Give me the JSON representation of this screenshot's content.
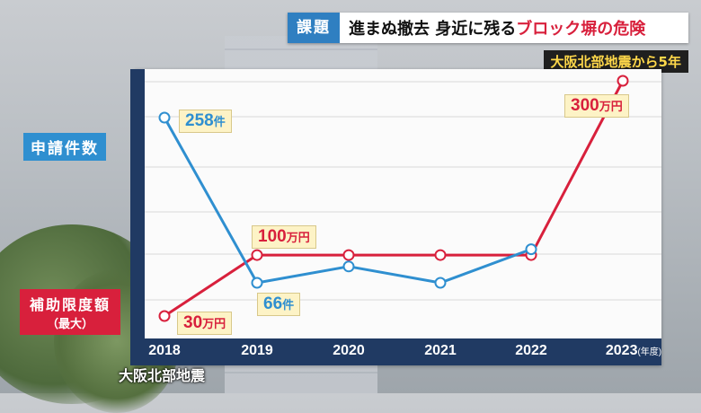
{
  "banner": {
    "badge": "課題",
    "text_black": "進まぬ撤去 身近に残る",
    "text_red": "ブロック塀の危険"
  },
  "subtitle": "大阪北部地震から5年",
  "colors": {
    "blue_series": "#2f8fd0",
    "red_series": "#d8203c",
    "axis": "#203a63",
    "badge": "#2f7fc1"
  },
  "chart_data": {
    "type": "line",
    "x": [
      "2018",
      "2019",
      "2020",
      "2021",
      "2022",
      "2023"
    ],
    "x_unit": "(年度)",
    "series": [
      {
        "name": "申請件数",
        "values": [
          258,
          66,
          85,
          66,
          105,
          null
        ]
      },
      {
        "name": "補助限度額（最大）",
        "values": [
          30,
          100,
          100,
          100,
          100,
          300
        ]
      }
    ],
    "labels": {
      "applications_2018": {
        "num": "258",
        "unit": "件"
      },
      "applications_2019": {
        "num": "66",
        "unit": "件"
      },
      "subsidy_2018": {
        "num": "30",
        "unit": "万円"
      },
      "subsidy_2019": {
        "num": "100",
        "unit": "万円"
      },
      "subsidy_2023": {
        "num": "300",
        "unit": "万円"
      }
    },
    "annotation": "大阪北部地震"
  },
  "legend": {
    "applications": "申請件数",
    "subsidy_l1": "補助限度額",
    "subsidy_l2": "（最大）"
  }
}
